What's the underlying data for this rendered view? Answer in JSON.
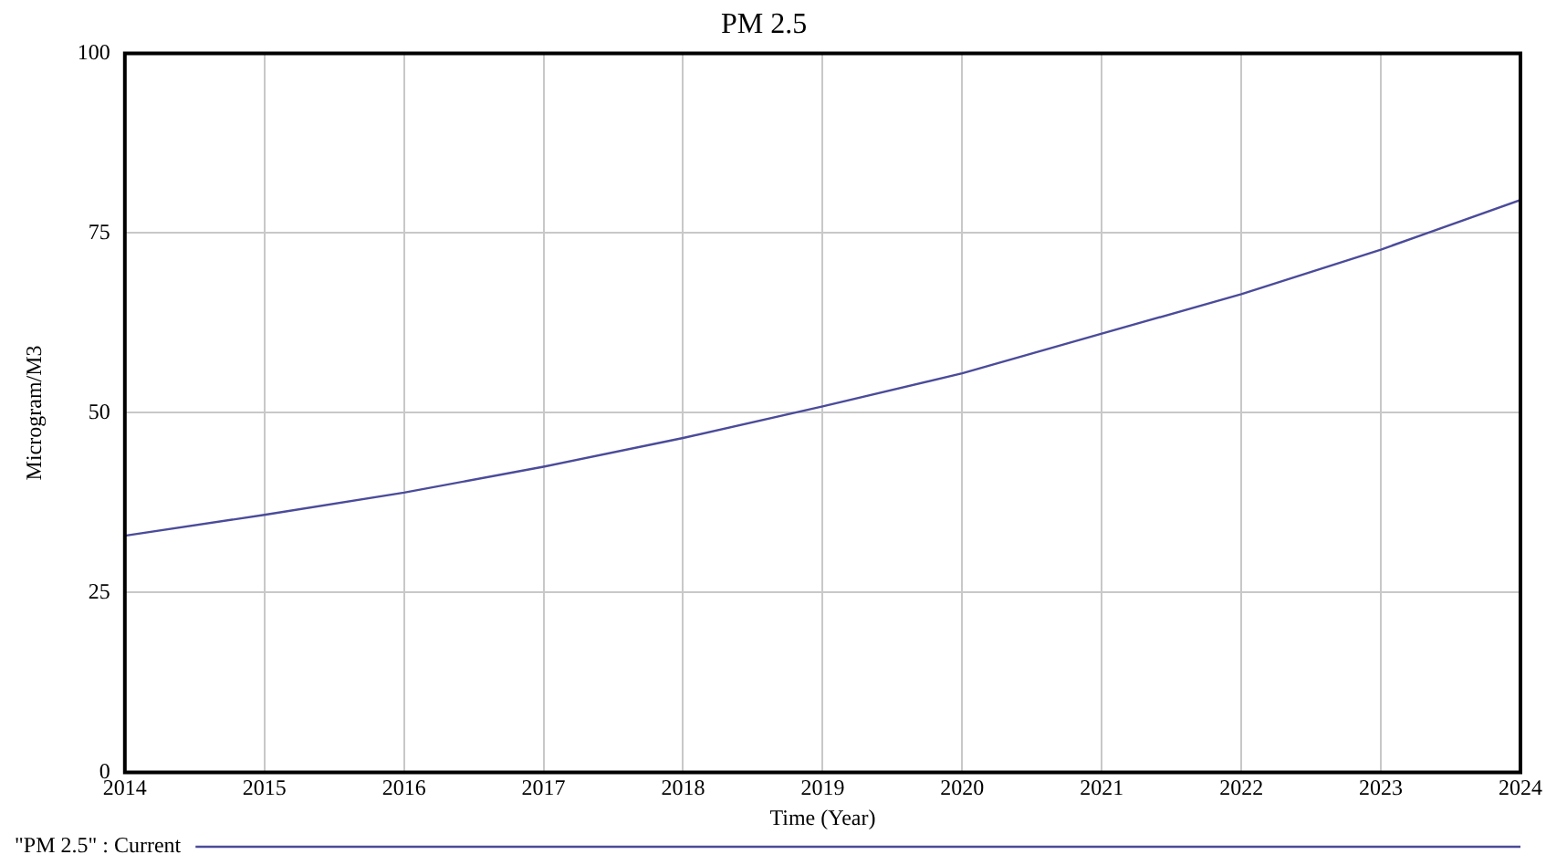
{
  "chart_data": {
    "type": "line",
    "title": "PM 2.5",
    "xlabel": "Time (Year)",
    "ylabel": "Microgram/M3",
    "x": [
      2014,
      2015,
      2016,
      2017,
      2018,
      2019,
      2020,
      2021,
      2022,
      2023,
      2024
    ],
    "series": [
      {
        "name": "\"PM 2.5\" : Current",
        "color": "#4b4b9b",
        "values": [
          32.9,
          35.8,
          38.9,
          42.5,
          46.5,
          50.9,
          55.5,
          61,
          66.5,
          72.7,
          79.6
        ]
      }
    ],
    "xlim": [
      2014,
      2024
    ],
    "xticks": [
      2014,
      2015,
      2016,
      2017,
      2018,
      2019,
      2020,
      2021,
      2022,
      2023,
      2024
    ],
    "ylim": [
      0,
      100
    ],
    "yticks": [
      0,
      25,
      50,
      75,
      100
    ],
    "grid": true,
    "legend": "bottom",
    "marker": "none",
    "line_style": "solid"
  }
}
